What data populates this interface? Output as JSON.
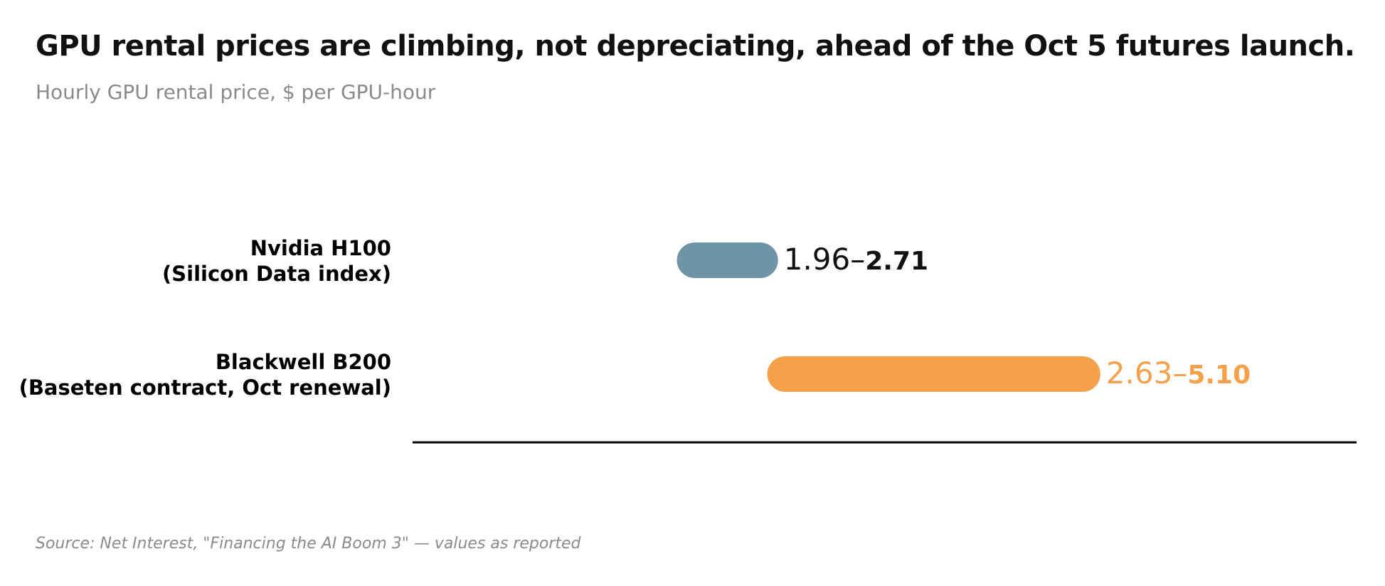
{
  "title": "GPU rental prices are climbing, not depreciating, ahead of the Oct 5 futures launch.",
  "subtitle": "Hourly GPU rental price, $ per GPU-hour",
  "source": "Source: Net Interest, \"Financing the AI Boom 3\" — values as reported",
  "colors": {
    "h100": "#6e94a6",
    "b200": "#f5a04b",
    "h100_label": "#111111",
    "b200_label": "#f5a04b",
    "axis": "#000000"
  },
  "chart_data": {
    "type": "range-bar",
    "orientation": "horizontal",
    "xlim": [
      0,
      7
    ],
    "grid": false,
    "legend": "none",
    "series": [
      {
        "label_line1": "Nvidia H100",
        "label_line2": "(Silicon Data index)",
        "low": 1.96,
        "high": 2.71,
        "low_text": "1.96–",
        "high_text": "2.71",
        "color": "#6e94a6",
        "label_color": "#111111"
      },
      {
        "label_line1": "Blackwell B200",
        "label_line2": "(Baseten contract, Oct renewal)",
        "low": 2.63,
        "high": 5.1,
        "low_text": "2.63–",
        "high_text": "5.10",
        "color": "#f5a04b",
        "label_color": "#f5a04b"
      }
    ]
  }
}
